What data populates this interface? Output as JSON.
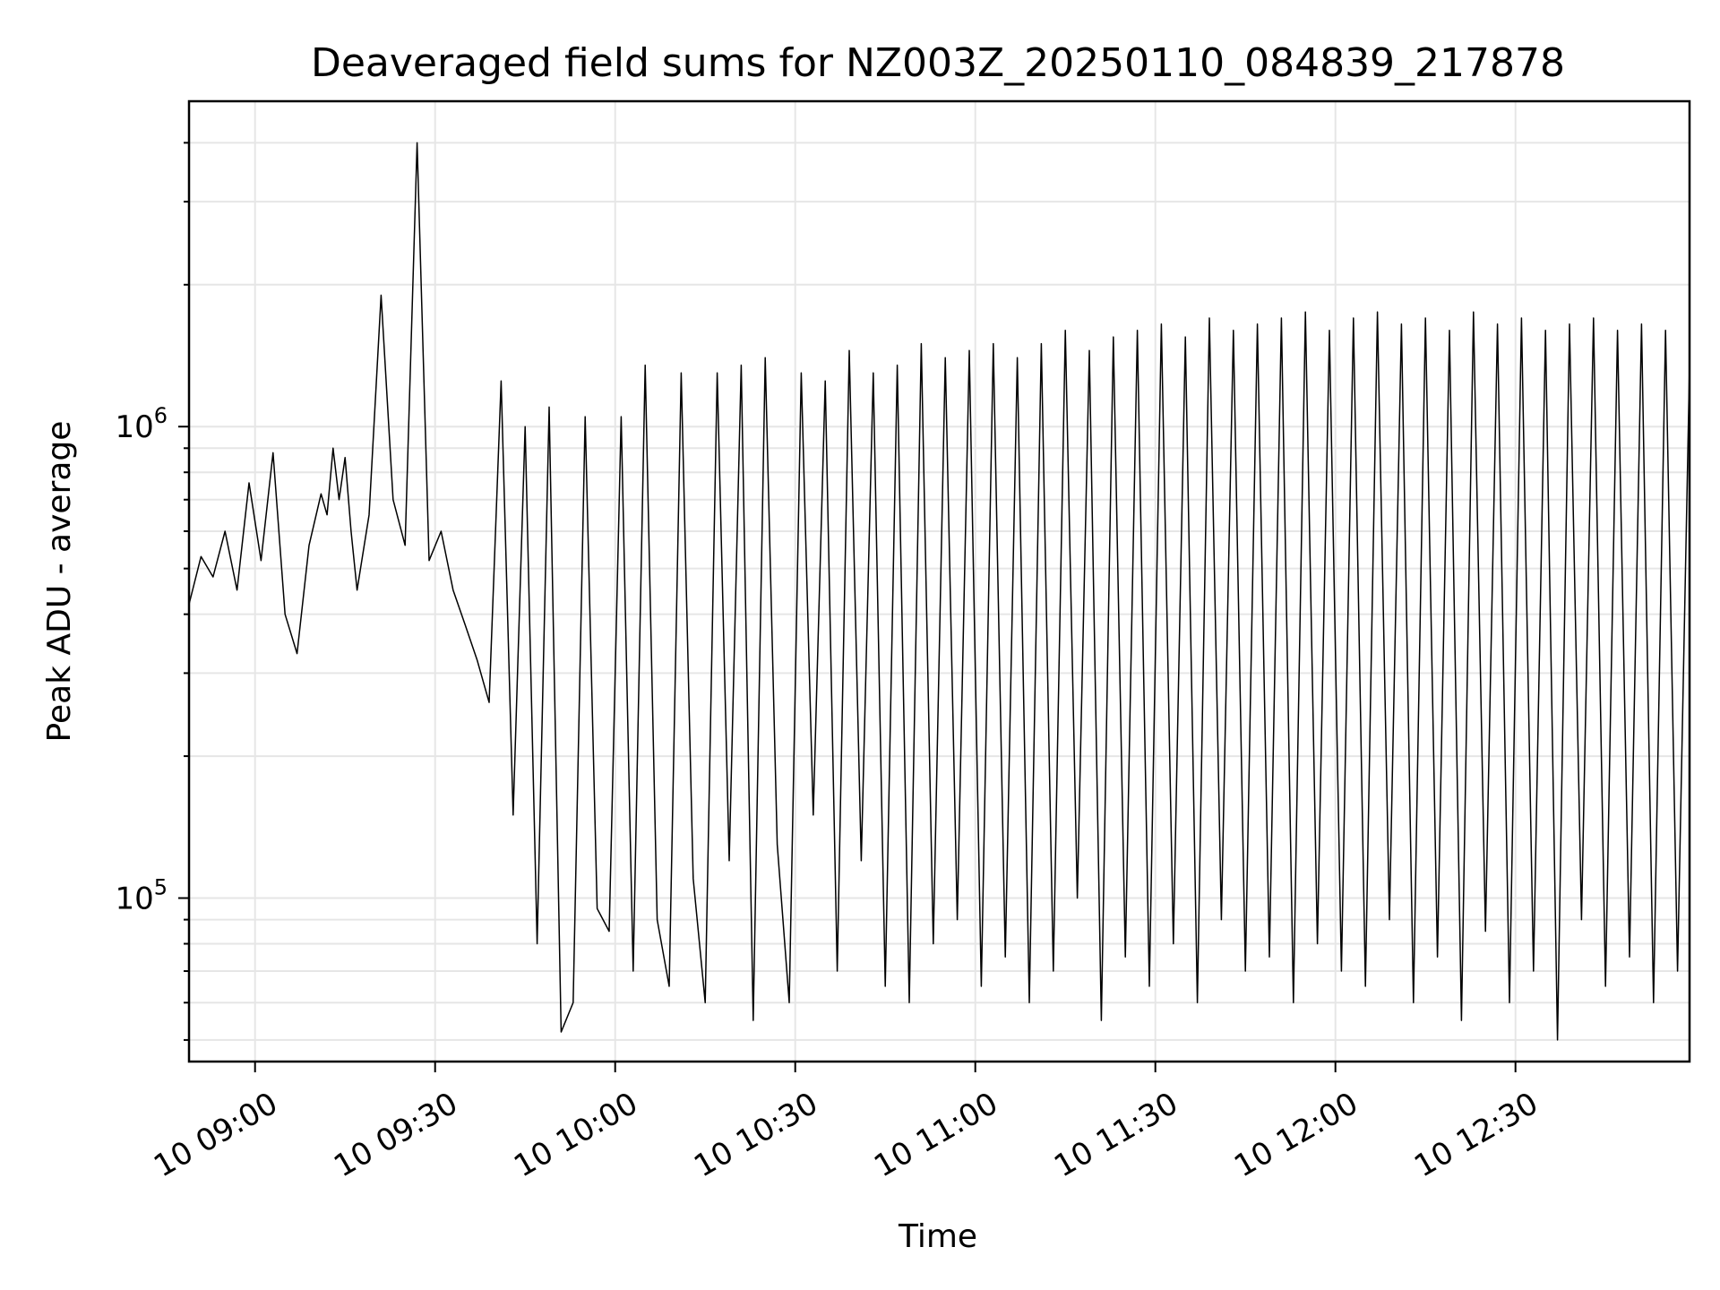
{
  "chart_data": {
    "type": "line",
    "title": "Deaveraged field sums for NZ003Z_20250110_084839_217878",
    "xlabel": "Time",
    "ylabel": "Peak ADU - average",
    "yscale": "log",
    "grid": true,
    "x_ticks": [
      {
        "label": "10 09:00",
        "minutes": 540
      },
      {
        "label": "10 09:30",
        "minutes": 570
      },
      {
        "label": "10 10:00",
        "minutes": 600
      },
      {
        "label": "10 10:30",
        "minutes": 630
      },
      {
        "label": "10 11:00",
        "minutes": 660
      },
      {
        "label": "10 11:30",
        "minutes": 690
      },
      {
        "label": "10 12:00",
        "minutes": 720
      },
      {
        "label": "10 12:30",
        "minutes": 750
      }
    ],
    "xlim": [
      "10 08:49",
      "10 12:59"
    ],
    "ylim": [
      45000,
      4900000
    ],
    "y_ticks": [
      {
        "mantissa": "10",
        "exponent": "5",
        "value": 100000
      },
      {
        "mantissa": "10",
        "exponent": "6",
        "value": 1000000
      }
    ],
    "line_color": "#000000",
    "series": [
      {
        "x": [
          "08:49",
          "08:51",
          "08:53",
          "08:55",
          "08:57",
          "08:59",
          "09:01",
          "09:03",
          "09:05",
          "09:07",
          "09:09",
          "09:11",
          "09:12",
          "09:13",
          "09:14",
          "09:15",
          "09:16",
          "09:17",
          "09:19",
          "09:21",
          "09:23",
          "09:25",
          "09:27",
          "09:29",
          "09:31",
          "09:33",
          "09:35",
          "09:37",
          "09:39",
          "09:41",
          "09:43",
          "09:45",
          "09:47",
          "09:49",
          "09:51",
          "09:53",
          "09:55",
          "09:57",
          "09:59",
          "10:01",
          "10:03",
          "10:05",
          "10:07",
          "10:09",
          "10:11",
          "10:13",
          "10:15",
          "10:17",
          "10:19",
          "10:21",
          "10:23",
          "10:25",
          "10:27",
          "10:29",
          "10:31",
          "10:33",
          "10:35",
          "10:37",
          "10:39",
          "10:41",
          "10:43",
          "10:45",
          "10:47",
          "10:49",
          "10:51",
          "10:53",
          "10:55",
          "10:57",
          "10:59",
          "11:01",
          "11:03",
          "11:05",
          "11:07",
          "11:09",
          "11:11",
          "11:13",
          "11:15",
          "11:17",
          "11:19",
          "11:21",
          "11:23",
          "11:25",
          "11:27",
          "11:29",
          "11:31",
          "11:33",
          "11:35",
          "11:37",
          "11:39",
          "11:41",
          "11:43",
          "11:45",
          "11:47",
          "11:49",
          "11:51",
          "11:53",
          "11:55",
          "11:57",
          "11:59",
          "12:01",
          "12:03",
          "12:05",
          "12:07",
          "12:09",
          "12:11",
          "12:13",
          "12:15",
          "12:17",
          "12:19",
          "12:21",
          "12:23",
          "12:25",
          "12:27",
          "12:29",
          "12:31",
          "12:33",
          "12:35",
          "12:37",
          "12:39",
          "12:41",
          "12:43",
          "12:45",
          "12:47",
          "12:49",
          "12:51",
          "12:53",
          "12:55",
          "12:57",
          "12:59"
        ],
        "values": [
          420000,
          530000,
          480000,
          600000,
          450000,
          760000,
          520000,
          880000,
          400000,
          330000,
          560000,
          720000,
          650000,
          900000,
          700000,
          860000,
          600000,
          450000,
          650000,
          1900000,
          700000,
          560000,
          4000000,
          520000,
          600000,
          450000,
          380000,
          320000,
          260000,
          1250000,
          150000,
          1000000,
          80000,
          1100000,
          52000,
          60000,
          1050000,
          95000,
          85000,
          1050000,
          70000,
          1350000,
          90000,
          65000,
          1300000,
          110000,
          60000,
          1300000,
          120000,
          1350000,
          55000,
          1400000,
          130000,
          60000,
          1300000,
          150000,
          1250000,
          70000,
          1450000,
          120000,
          1300000,
          65000,
          1350000,
          60000,
          1500000,
          80000,
          1400000,
          90000,
          1450000,
          65000,
          1500000,
          75000,
          1400000,
          60000,
          1500000,
          70000,
          1600000,
          100000,
          1450000,
          55000,
          1550000,
          75000,
          1600000,
          65000,
          1650000,
          80000,
          1550000,
          60000,
          1700000,
          90000,
          1600000,
          70000,
          1650000,
          75000,
          1700000,
          60000,
          1750000,
          80000,
          1600000,
          70000,
          1700000,
          65000,
          1750000,
          90000,
          1650000,
          60000,
          1700000,
          75000,
          1600000,
          55000,
          1750000,
          85000,
          1650000,
          60000,
          1700000,
          70000,
          1600000,
          50000,
          1650000,
          90000,
          1700000,
          65000,
          1600000,
          75000,
          1650000,
          60000,
          1600000,
          70000,
          1350000
        ]
      }
    ]
  }
}
